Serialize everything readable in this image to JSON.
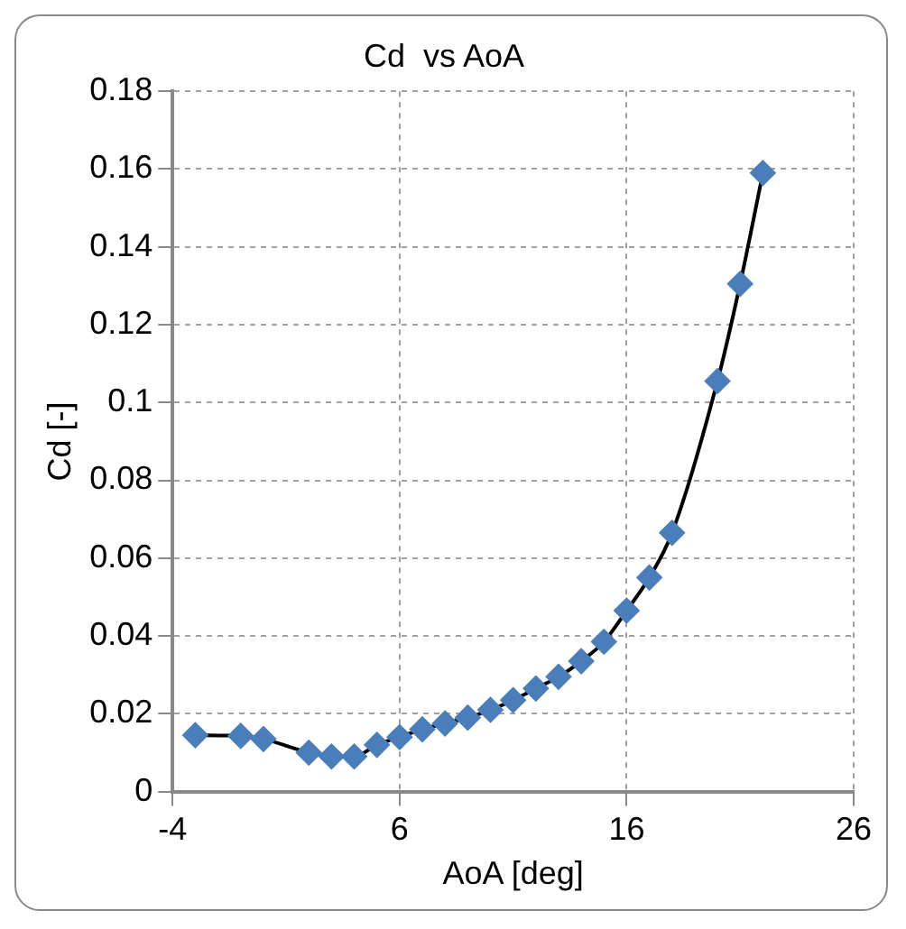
{
  "chart_data": {
    "type": "line",
    "title": "Cd  vs AoA",
    "xlabel": "AoA [deg]",
    "ylabel": "Cd [-]",
    "x": [
      -3,
      -1,
      0,
      2,
      3,
      4,
      5,
      6,
      7,
      8,
      9,
      10,
      11,
      12,
      13,
      14,
      15,
      16,
      17,
      18,
      20,
      21,
      22
    ],
    "series": [
      {
        "color": "#4a7ebb",
        "values": [
          0.0145,
          0.0143,
          0.0135,
          0.01,
          0.009,
          0.009,
          0.012,
          0.014,
          0.016,
          0.0175,
          0.019,
          0.021,
          0.0235,
          0.0265,
          0.0295,
          0.0335,
          0.0385,
          0.0465,
          0.055,
          0.0665,
          0.1055,
          0.1305,
          0.159
        ]
      }
    ],
    "xlim": [
      -4,
      26
    ],
    "xticks": [
      -4,
      6,
      16,
      26
    ],
    "ylim": [
      0,
      0.18
    ],
    "yticks": [
      0,
      0.02,
      0.04,
      0.06,
      0.08,
      0.1,
      0.12,
      0.14,
      0.16,
      0.18
    ],
    "grid": true,
    "marker": "diamond",
    "line_style": "solid",
    "legend": false
  }
}
